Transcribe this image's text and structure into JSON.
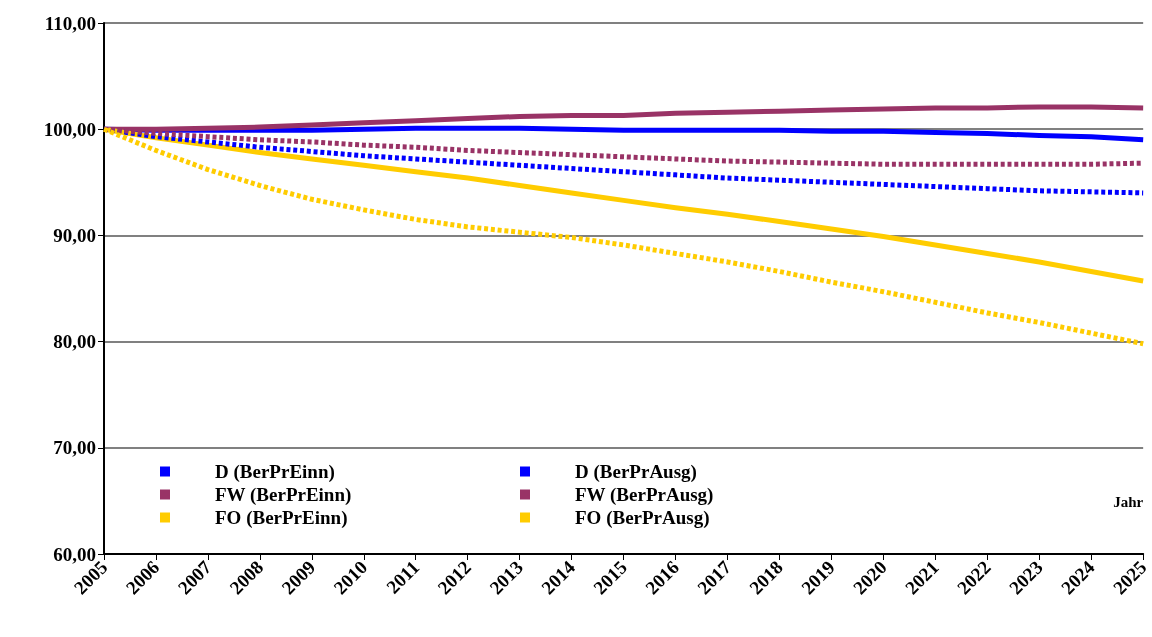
{
  "chart_data": {
    "type": "line",
    "xlabel": "Jahr",
    "categories": [
      "2005",
      "2006",
      "2007",
      "2008",
      "2009",
      "2010",
      "2011",
      "2012",
      "2013",
      "2014",
      "2015",
      "2016",
      "2017",
      "2018",
      "2019",
      "2020",
      "2021",
      "2022",
      "2023",
      "2024",
      "2025"
    ],
    "ylim": [
      60,
      110
    ],
    "yticks": [
      {
        "value": 60,
        "label": "60,00"
      },
      {
        "value": 70,
        "label": "70,00"
      },
      {
        "value": 80,
        "label": "80,00"
      },
      {
        "value": 90,
        "label": "90,00"
      },
      {
        "value": 100,
        "label": "100,00"
      },
      {
        "value": 110,
        "label": "110,00"
      }
    ],
    "grid": "y",
    "legend": "bottom left",
    "marker": "none",
    "series": [
      {
        "name": "D (BerPrEinn)",
        "color": "#0000ff",
        "line_style": "solid",
        "values": [
          100,
          99.9,
          99.9,
          99.9,
          99.9,
          100,
          100.1,
          100.1,
          100.1,
          100,
          99.9,
          99.9,
          99.9,
          99.9,
          99.8,
          99.8,
          99.7,
          99.6,
          99.4,
          99.3,
          99.0
        ]
      },
      {
        "name": "FW (BerPrEinn)",
        "color": "#993366",
        "line_style": "solid",
        "values": [
          100,
          100,
          100.1,
          100.2,
          100.4,
          100.6,
          100.8,
          101,
          101.2,
          101.3,
          101.3,
          101.5,
          101.6,
          101.7,
          101.8,
          101.9,
          102,
          102,
          102.1,
          102.1,
          102
        ]
      },
      {
        "name": "FO (BerPrEinn)",
        "color": "#ffcc00",
        "line_style": "solid",
        "values": [
          100,
          99.2,
          98.5,
          97.8,
          97.2,
          96.6,
          96,
          95.4,
          94.7,
          94,
          93.3,
          92.6,
          92,
          91.3,
          90.6,
          89.9,
          89.1,
          88.3,
          87.5,
          86.6,
          85.7
        ]
      },
      {
        "name": "D (BerPrAusg)",
        "color": "#0000ff",
        "line_style": "dashed",
        "values": [
          100,
          99.3,
          98.8,
          98.3,
          97.9,
          97.5,
          97.2,
          96.9,
          96.6,
          96.3,
          96,
          95.7,
          95.4,
          95.2,
          95,
          94.8,
          94.6,
          94.4,
          94.2,
          94.1,
          94
        ]
      },
      {
        "name": "FW (BerPrAusg)",
        "color": "#993366",
        "line_style": "dashed",
        "values": [
          100,
          99.6,
          99.3,
          99,
          98.8,
          98.5,
          98.3,
          98,
          97.8,
          97.6,
          97.4,
          97.2,
          97,
          96.9,
          96.8,
          96.7,
          96.7,
          96.7,
          96.7,
          96.7,
          96.8
        ]
      },
      {
        "name": "FO (BerPrAusg)",
        "color": "#ffcc00",
        "line_style": "dashed",
        "values": [
          100,
          98,
          96.2,
          94.7,
          93.4,
          92.4,
          91.5,
          90.8,
          90.3,
          89.8,
          89.1,
          88.3,
          87.5,
          86.6,
          85.6,
          84.7,
          83.7,
          82.7,
          81.8,
          80.8,
          79.8
        ]
      }
    ]
  }
}
